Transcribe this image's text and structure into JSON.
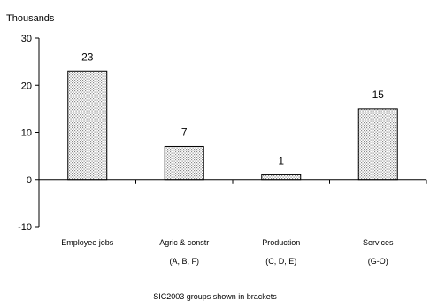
{
  "chart_data": {
    "type": "bar",
    "ylabel": "Thousands",
    "ylim": [
      -10,
      30
    ],
    "yticks": [
      -10,
      0,
      10,
      20,
      30
    ],
    "categories": [
      "Employee jobs",
      "Agric & constr",
      "Production",
      "Services"
    ],
    "category_sublabels": [
      "",
      "(A, B, F)",
      "(C, D, E)",
      "(G-O)"
    ],
    "values": [
      23,
      7,
      1,
      15
    ],
    "data_labels": [
      "23",
      "7",
      "1",
      "15"
    ],
    "footnote": "SIC2003 groups shown in brackets",
    "grid": false,
    "legend": "none",
    "bar_fill": "#d9d9d9",
    "bar_stroke": "#000000"
  }
}
